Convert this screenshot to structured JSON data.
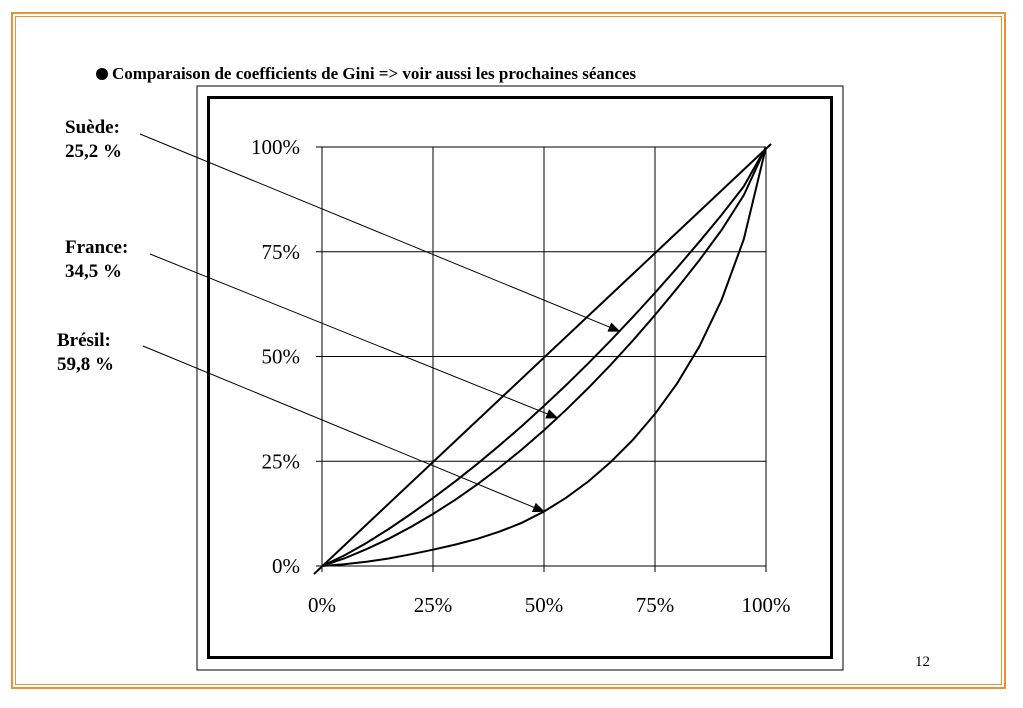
{
  "slide": {
    "headline": "Comparaison de coefficients de Gini => voir aussi les prochaines séances",
    "page_number": "12",
    "border_color": "#e8913a"
  },
  "chart_data": {
    "type": "line",
    "title": "",
    "xlabel": "",
    "ylabel": "",
    "xlim": [
      0,
      100
    ],
    "ylim": [
      0,
      100
    ],
    "grid": true,
    "x_ticks": [
      "0%",
      "25%",
      "50%",
      "75%",
      "100%"
    ],
    "y_ticks": [
      "0%",
      "25%",
      "50%",
      "75%",
      "100%"
    ],
    "x": [
      0,
      5,
      10,
      15,
      20,
      25,
      30,
      35,
      40,
      45,
      50,
      55,
      60,
      65,
      70,
      75,
      80,
      85,
      90,
      95,
      100
    ],
    "series": [
      {
        "name": "",
        "values": [
          0,
          5,
          10,
          15,
          20,
          25,
          30,
          35,
          40,
          45,
          50,
          55,
          60,
          65,
          70,
          75,
          80,
          85,
          90,
          95,
          100
        ]
      },
      {
        "name": "Suède",
        "values": [
          0,
          2.5,
          5.5,
          8.8,
          12.4,
          16.2,
          20.2,
          24.4,
          28.8,
          33.4,
          38.2,
          43.2,
          48.4,
          53.8,
          59.4,
          65.2,
          71.2,
          77.4,
          83.8,
          90.6,
          100
        ]
      },
      {
        "name": "France",
        "values": [
          0,
          1.8,
          4.0,
          6.5,
          9.3,
          12.4,
          15.8,
          19.5,
          23.5,
          27.8,
          32.4,
          37.3,
          42.5,
          48.0,
          53.8,
          59.9,
          66.3,
          73.0,
          80.2,
          88.5,
          100
        ]
      },
      {
        "name": "Brésil",
        "values": [
          0,
          0.4,
          1.0,
          1.8,
          2.8,
          3.9,
          5.1,
          6.5,
          8.2,
          10.3,
          13.0,
          16.3,
          20.2,
          24.8,
          30.1,
          36.3,
          43.6,
          52.4,
          63.5,
          78.0,
          100
        ]
      }
    ],
    "annotations": [
      {
        "label": "Suède:",
        "value": "25,2 %",
        "series": "Suède",
        "x": 67
      },
      {
        "label": "France:",
        "value": "34,5 %",
        "series": "France",
        "x": 53
      },
      {
        "label": "Brésil:",
        "value": "59,8 %",
        "series": "Brésil",
        "x": 50
      }
    ]
  }
}
